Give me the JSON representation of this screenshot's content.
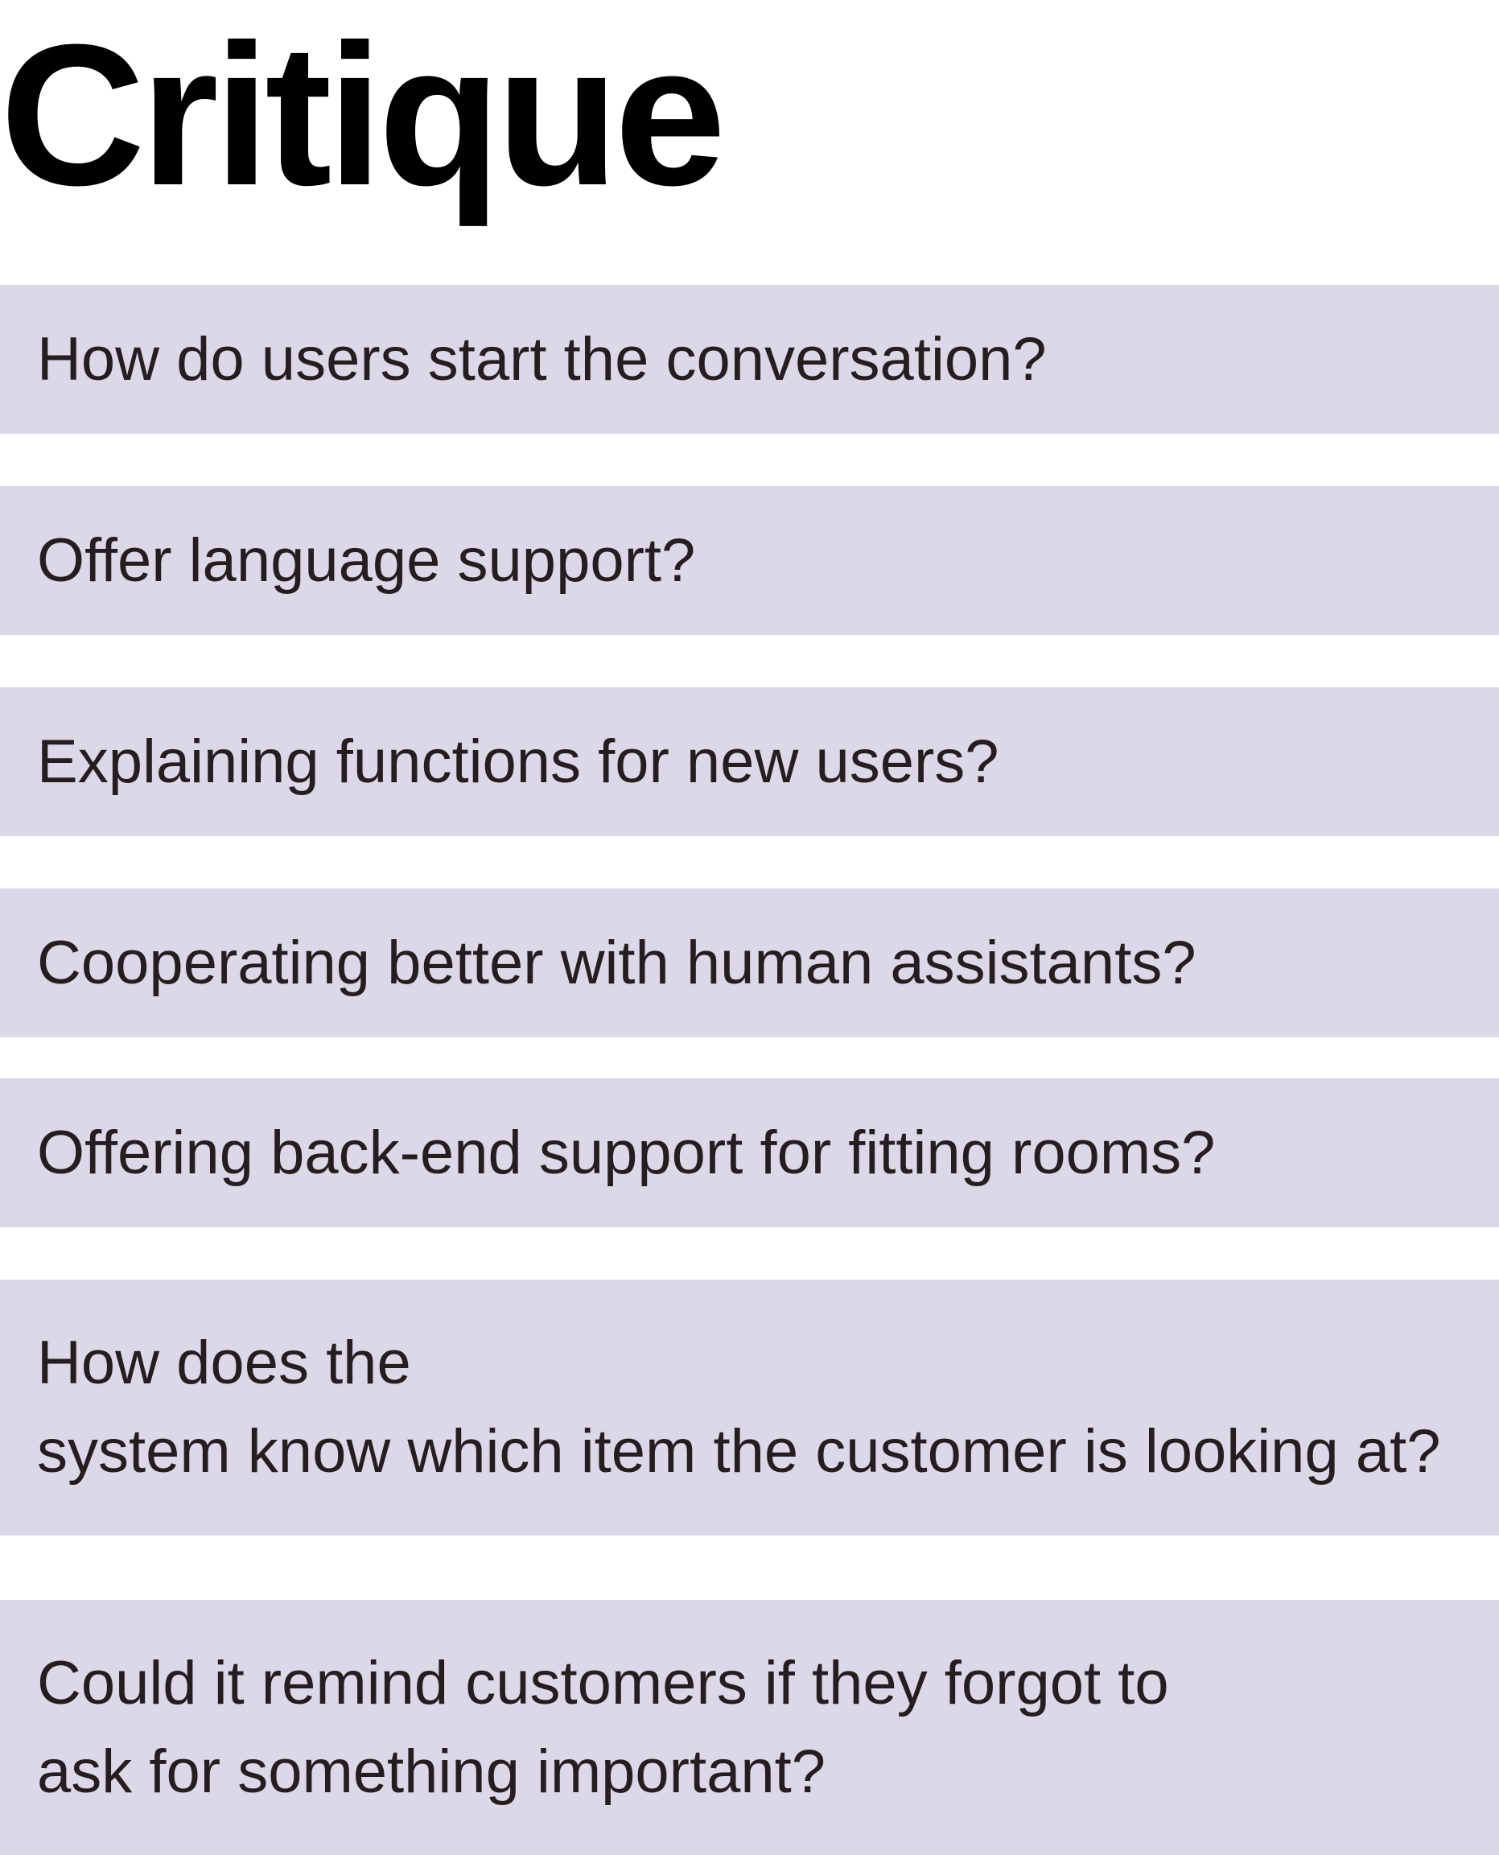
{
  "title": "Critique",
  "cards": [
    {
      "text": "How do users start the conversation?"
    },
    {
      "text": "Offer language support?"
    },
    {
      "text": "Explaining functions for new users?"
    },
    {
      "text": "Cooperating better with human assistants?"
    },
    {
      "text": "Offering back-end support for fitting rooms?"
    },
    {
      "text": "How does the system know which item the customer is looking at?"
    },
    {
      "text": "Could it remind customers if they forgot to ask for something important?"
    }
  ],
  "colors": {
    "card_background": "#dcd8e8",
    "text": "#231f20",
    "title": "#000000"
  }
}
